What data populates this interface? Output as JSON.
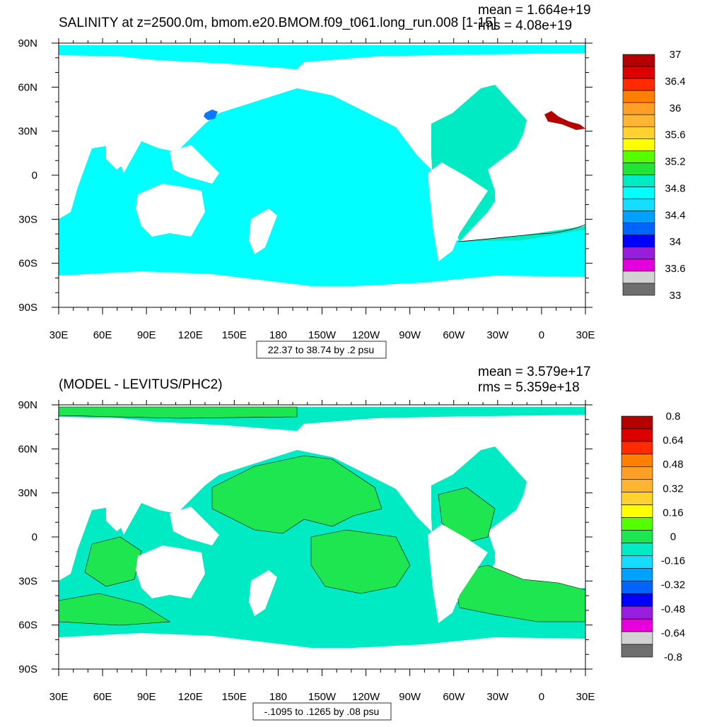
{
  "chart_data": [
    {
      "type": "heatmap",
      "title": "SALINITY at z=2500.0m, bmom.e20.BMOM.f09_t061.long_run.008 [1-15]",
      "stats": {
        "mean": "mean = 1.664e+19",
        "rms": "rms = 4.08e+19"
      },
      "xticks": [
        "30E",
        "60E",
        "90E",
        "120E",
        "150E",
        "180",
        "150W",
        "120W",
        "90W",
        "60W",
        "30W",
        "0",
        "30E"
      ],
      "yticks": [
        "90N",
        "60N",
        "30N",
        "0",
        "30S",
        "60S",
        "90S"
      ],
      "xlim": [
        30,
        390
      ],
      "ylim": [
        -90,
        90
      ],
      "contour_info": "22.37 to 38.74 by .2 psu",
      "colorbar": {
        "labels": [
          "37",
          "36.4",
          "36",
          "35.6",
          "35.2",
          "34.8",
          "34.4",
          "34",
          "33.6",
          "33"
        ],
        "colors": [
          "#b40000",
          "#dc0000",
          "#ff2a00",
          "#ff7f00",
          "#ff9f28",
          "#ffb432",
          "#ffd232",
          "#ffff00",
          "#55ff00",
          "#1ee632",
          "#00ebc3",
          "#00ffff",
          "#16dcff",
          "#00a0ff",
          "#0064ff",
          "#0000ff",
          "#961edc",
          "#e600dc",
          "#d2d2d2",
          "#6e6e6e"
        ]
      },
      "dominant_value_region": "34.8-35.0 (cyan) Pacific/Indian/Southern; 35.0-35.2 (green-cyan) Atlantic"
    },
    {
      "type": "heatmap",
      "title": "(MODEL - LEVITUS/PHC2)",
      "stats": {
        "mean": "mean = 3.579e+17",
        "rms": "rms = 5.359e+18"
      },
      "xticks": [
        "30E",
        "60E",
        "90E",
        "120E",
        "150E",
        "180",
        "150W",
        "120W",
        "90W",
        "60W",
        "30W",
        "0",
        "30E"
      ],
      "yticks": [
        "90N",
        "60N",
        "30N",
        "0",
        "30S",
        "60S",
        "90S"
      ],
      "xlim": [
        30,
        390
      ],
      "ylim": [
        -90,
        90
      ],
      "contour_info": "-.1095 to .1265 by .08 psu",
      "colorbar": {
        "labels": [
          "0.8",
          "0.64",
          "0.48",
          "0.32",
          "0.16",
          "0",
          "-0.16",
          "-0.32",
          "-0.48",
          "-0.64",
          "-0.8"
        ],
        "colors": [
          "#b40000",
          "#dc0000",
          "#ff2a00",
          "#ff7f00",
          "#ff9f28",
          "#ffb432",
          "#ffd232",
          "#ffff00",
          "#55ff00",
          "#1ee650",
          "#00ebc3",
          "#16dcff",
          "#00a0ff",
          "#0064ff",
          "#0000ff",
          "#961edc",
          "#e600dc",
          "#d2d2d2",
          "#6e6e6e"
        ]
      },
      "dominant_value_region": "mix of 0 to 0.16 (green) and -0.16 to 0 (cyan)"
    }
  ]
}
